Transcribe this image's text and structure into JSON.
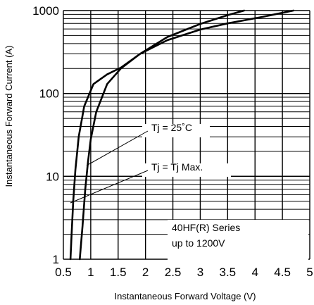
{
  "chart_data": {
    "type": "line",
    "title": "",
    "xlabel": "Instantaneous Forward Voltage (V)",
    "ylabel": "Instantaneous Forward Current (A)",
    "xlim": [
      0.5,
      5
    ],
    "ylim": [
      1,
      1000
    ],
    "y_scale": "log",
    "grid": true,
    "x_ticks": [
      "0.5",
      "1",
      "1.5",
      "2",
      "2.5",
      "3",
      "3.5",
      "4",
      "4.5",
      "5"
    ],
    "y_ticks": [
      "1",
      "10",
      "100",
      "1000"
    ],
    "series": [
      {
        "name": "Tj = 25˚C",
        "x": [
          0.8,
          0.85,
          0.9,
          0.95,
          1.0,
          1.1,
          1.3,
          1.55,
          1.9,
          2.4,
          3.0,
          3.5,
          4.1,
          4.7
        ],
        "y": [
          1,
          2.5,
          7,
          15,
          28,
          60,
          130,
          200,
          300,
          440,
          590,
          700,
          830,
          1000
        ]
      },
      {
        "name": "Tj = Tj Max.",
        "x": [
          0.63,
          0.65,
          0.68,
          0.72,
          0.78,
          0.88,
          1.05,
          1.3,
          1.55,
          1.9,
          2.4,
          3.0,
          3.5,
          3.8
        ],
        "y": [
          1,
          2,
          5,
          12,
          30,
          70,
          130,
          170,
          205,
          300,
          480,
          690,
          880,
          1000
        ]
      }
    ],
    "annotations": [
      {
        "text": "Tj = 25˚C",
        "target_series": 0
      },
      {
        "text": "Tj = Tj Max.",
        "target_series": 1
      },
      {
        "text": "40HF(R) Series"
      },
      {
        "text": "up to 1200V"
      }
    ]
  }
}
